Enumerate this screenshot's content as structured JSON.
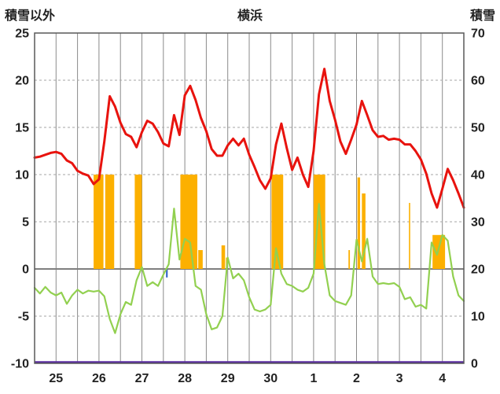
{
  "header": {
    "left_axis_title": "積雪以外",
    "station_title": "横浜",
    "right_axis_title": "積雪"
  },
  "colors": {
    "red_line": "#e8130e",
    "green_line": "#92d050",
    "orange_bar": "#fcb000",
    "blue_bar": "#2a5cc8",
    "purple_line": "#5a2ca0",
    "grid_vertical": "#8a8a8a",
    "grid_dashed": "#a6a6a6",
    "zero_line": "#7f7f7f",
    "frame": "#595959",
    "text": "#222222"
  },
  "chart_data": {
    "type": "line",
    "title": "横浜",
    "left_axis_label": "積雪以外",
    "right_axis_label": "積雪",
    "x_hours_step": 3,
    "x_range_hours": [
      0,
      240
    ],
    "left_axis": {
      "min": -10,
      "max": 25,
      "ticks": [
        25,
        20,
        15,
        10,
        5,
        0,
        -5,
        -10
      ]
    },
    "right_axis": {
      "min": 0,
      "max": 70,
      "ticks": [
        70,
        60,
        50,
        40,
        30,
        20,
        10,
        0
      ]
    },
    "x_labels": [
      "25",
      "26",
      "27",
      "28",
      "29",
      "30",
      "1",
      "2",
      "3",
      "4"
    ],
    "grid": {
      "vertical_every_hours": 12,
      "horizontal_dashed": true
    },
    "series": [
      {
        "name": "red-line",
        "type": "line",
        "color_key": "red_line",
        "width": 3,
        "values": [
          11.8,
          11.9,
          12.1,
          12.3,
          12.4,
          12.2,
          11.5,
          11.2,
          10.4,
          10.1,
          9.9,
          9.0,
          9.5,
          13.5,
          18.3,
          17.2,
          15.5,
          14.3,
          14.0,
          12.9,
          14.5,
          15.7,
          15.4,
          14.5,
          13.3,
          13.0,
          16.3,
          14.2,
          18.4,
          19.4,
          17.9,
          16.0,
          14.6,
          12.7,
          12.0,
          12.0,
          13.1,
          13.8,
          13.1,
          13.8,
          12.1,
          10.8,
          9.4,
          8.5,
          9.6,
          13.2,
          15.4,
          12.8,
          10.5,
          11.8,
          10.0,
          8.7,
          12.5,
          18.5,
          21.2,
          17.8,
          15.8,
          13.5,
          12.2,
          13.7,
          15.3,
          17.8,
          16.3,
          14.7,
          14.0,
          14.1,
          13.7,
          13.8,
          13.7,
          13.2,
          13.2,
          12.5,
          11.6,
          10.1,
          8.0,
          6.5,
          8.5,
          10.6,
          9.4,
          8.0,
          6.5
        ]
      },
      {
        "name": "green-line",
        "type": "line",
        "color_key": "green_line",
        "width": 2.2,
        "values": [
          -2.0,
          -2.6,
          -1.9,
          -2.5,
          -2.8,
          -2.5,
          -3.7,
          -2.8,
          -2.2,
          -2.6,
          -2.3,
          -2.4,
          -2.3,
          -2.9,
          -5.3,
          -6.8,
          -4.8,
          -3.5,
          -3.8,
          -1.2,
          0.2,
          -1.8,
          -1.4,
          -1.8,
          -0.6,
          0.5,
          6.4,
          1.0,
          3.2,
          2.8,
          -1.8,
          -2.2,
          -4.8,
          -6.4,
          -6.2,
          -5.0,
          1.2,
          -1.0,
          -0.5,
          -1.2,
          -3.0,
          -4.3,
          -4.5,
          -4.3,
          -3.8,
          2.2,
          -0.5,
          -1.6,
          -1.8,
          -2.2,
          -2.4,
          -2.0,
          -0.5,
          6.9,
          0.5,
          -2.8,
          -3.4,
          -3.6,
          -3.8,
          -2.8,
          3.1,
          0.8,
          3.2,
          -0.8,
          -1.6,
          -1.5,
          -1.6,
          -1.5,
          -1.9,
          -3.2,
          -3.0,
          -4.0,
          -3.8,
          -4.2,
          2.8,
          1.5,
          3.6,
          3.0,
          -0.8,
          -2.8,
          -3.4
        ]
      },
      {
        "name": "orange-bars",
        "type": "bar",
        "color_key": "orange_bar",
        "blocks": [
          [
            33,
            38.5,
            10
          ],
          [
            39.5,
            44.5,
            10
          ],
          [
            56,
            60,
            10
          ],
          [
            81.5,
            91,
            10
          ],
          [
            91.5,
            94,
            2
          ],
          [
            104.5,
            106.5,
            2.5
          ],
          [
            107,
            107.8,
            1.2
          ],
          [
            132.5,
            139,
            10
          ],
          [
            156,
            162.5,
            10
          ],
          [
            175.5,
            176.3,
            2
          ],
          [
            180.5,
            182,
            9.7
          ],
          [
            183,
            185,
            8
          ],
          [
            209.3,
            210,
            7
          ],
          [
            222.5,
            229.5,
            3.6
          ]
        ]
      },
      {
        "name": "blue-bar",
        "type": "bar",
        "color_key": "blue_bar",
        "blocks": [
          [
            73.5,
            74.4,
            -0.9
          ]
        ]
      },
      {
        "name": "purple-line",
        "type": "hline",
        "color_key": "purple_line",
        "width": 2.5,
        "value": -10
      }
    ]
  }
}
